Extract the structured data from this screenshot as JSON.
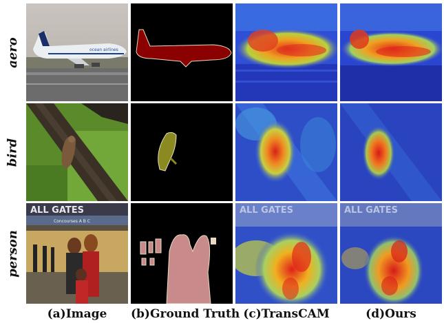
{
  "figure": {
    "rows": [
      {
        "label": "aero"
      },
      {
        "label": "bird"
      },
      {
        "label": "person"
      }
    ],
    "columns": [
      {
        "label": "(a)Image"
      },
      {
        "label": "(b)Ground Truth"
      },
      {
        "label": "(c)TransCAM"
      },
      {
        "label": "(d)Ours"
      }
    ],
    "image_text": {
      "airline_logo": "ocean airlines",
      "banner": "ALL GATES",
      "concourse_sign": "Concourses A B C"
    },
    "colors": {
      "aero_mask": "#8b0000",
      "bird_mask": "#8a8a20",
      "person_mask": "#c88a8a",
      "mask_outline": "#e8dcc0",
      "heat_low": "#2a3fd8",
      "heat_high": "#e0201a"
    }
  }
}
